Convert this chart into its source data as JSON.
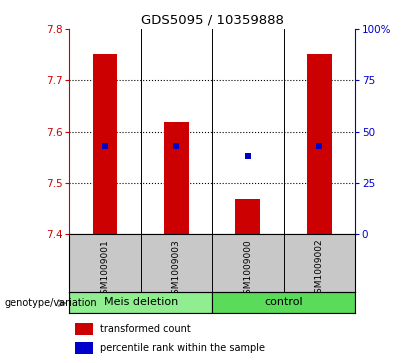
{
  "title": "GDS5095 / 10359888",
  "samples": [
    "GSM1009001",
    "GSM1009003",
    "GSM1009000",
    "GSM1009002"
  ],
  "bar_values": [
    7.752,
    7.618,
    7.468,
    7.751
  ],
  "bar_base": 7.4,
  "blue_values": [
    7.571,
    7.571,
    7.553,
    7.572
  ],
  "ylim_left": [
    7.4,
    7.8
  ],
  "ylim_right": [
    0,
    100
  ],
  "yticks_left": [
    7.4,
    7.5,
    7.6,
    7.7,
    7.8
  ],
  "yticks_right": [
    0,
    25,
    50,
    75,
    100
  ],
  "ytick_labels_right": [
    "0",
    "25",
    "50",
    "75",
    "100%"
  ],
  "groups": [
    {
      "label": "Meis deletion",
      "color": "#90EE90"
    },
    {
      "label": "control",
      "color": "#5ADB5A"
    }
  ],
  "bar_color": "#CC0000",
  "blue_color": "#0000CC",
  "left_axis_color": "#CC0000",
  "right_axis_color": "#0000CC",
  "sample_area_color": "#C8C8C8",
  "legend_red_label": "transformed count",
  "legend_blue_label": "percentile rank within the sample",
  "genotype_label": "genotype/variation",
  "bar_width": 0.35,
  "plot_bg": "#FFFFFF",
  "fig_bg": "#FFFFFF"
}
